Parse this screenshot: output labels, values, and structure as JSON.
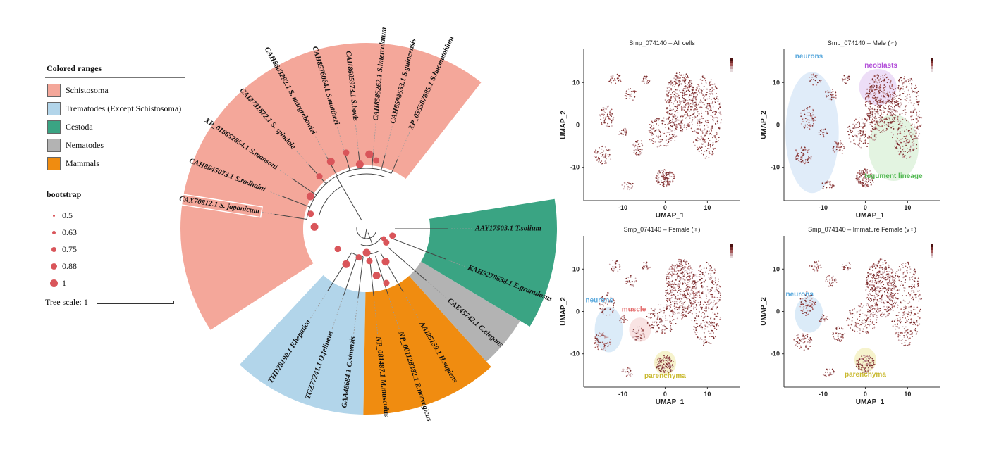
{
  "legend": {
    "colored_ranges_title": "Colored ranges",
    "ranges": [
      {
        "label": "Schistosoma",
        "color": "#f4a79a"
      },
      {
        "label": "Trematodes (Except Schistosoma)",
        "color": "#b2d5ea"
      },
      {
        "label": "Cestoda",
        "color": "#3aa483"
      },
      {
        "label": "Nematodes",
        "color": "#b3b3b3"
      },
      {
        "label": "Mammals",
        "color": "#f08c10"
      }
    ],
    "bootstrap_title": "bootstrap",
    "bootstrap_values": [
      "0.5",
      "0.63",
      "0.75",
      "0.88",
      "1"
    ],
    "tree_scale": "Tree scale: 1"
  },
  "tree": {
    "leaves": [
      "XP_035587885.1 S.haematobium",
      "CAH8598553.1 S.guineensis",
      "CAH8585262.1 S.intercalatum",
      "CAH8605973.1 S.bovis",
      "CAH8576064.1 S.mattheei",
      "CAH8603292.1 S. margrebowiei",
      "CAI2731872.1 S. spindale",
      "XP_018652854.1 S.mansoni",
      "CAH8645073.1 S.rodhaini",
      "CAX70812.1 S. japonicum",
      "THD28190.1 F.hepatica",
      "TGZ77241.1 O.felineus",
      "GAA48684.1 C.sinensis",
      "NP_081487.1 M.musculus",
      "NP_001128382.1 R.norvegicus",
      "AAI25159.1 H.sapiens",
      "CAE45742.1 C.elegans",
      "KAH9278638.1 E.granulosus",
      "AAY17503.1 T.solium"
    ]
  },
  "umap_panels": [
    {
      "title": "Smp_074140 – All cells",
      "xlabel": "UMAP_1",
      "ylabel": "UMAP_2",
      "xticks": [
        "-10",
        "0",
        "10"
      ],
      "yticks": [
        "10",
        "0",
        "-10"
      ],
      "annotations": []
    },
    {
      "title": "Smp_074140 – Male (♂)",
      "xlabel": "UMAP_1",
      "ylabel": "UMAP_2",
      "xticks": [
        "-10",
        "0",
        "10"
      ],
      "yticks": [
        "10",
        "0",
        "-10"
      ],
      "annotations": [
        {
          "label": "neurons",
          "color": "#5aa9dd"
        },
        {
          "label": "neoblasts",
          "color": "#b24fd9"
        },
        {
          "label": "tegument lineage",
          "color": "#4fb84f"
        }
      ]
    },
    {
      "title": "Smp_074140 – Female (♀)",
      "xlabel": "UMAP_1",
      "ylabel": "UMAP_2",
      "xticks": [
        "-10",
        "0",
        "10"
      ],
      "yticks": [
        "10",
        "0",
        "-10"
      ],
      "annotations": [
        {
          "label": "neurons",
          "color": "#5aa9dd"
        },
        {
          "label": "muscle",
          "color": "#e36a6a"
        },
        {
          "label": "parenchyma",
          "color": "#c9b92e"
        }
      ]
    },
    {
      "title": "Smp_074140 – Immature Female (v♀)",
      "xlabel": "UMAP_1",
      "ylabel": "UMAP_2",
      "xticks": [
        "-10",
        "0",
        "10"
      ],
      "yticks": [
        "10",
        "0",
        "-10"
      ],
      "annotations": [
        {
          "label": "neurons",
          "color": "#5aa9dd"
        },
        {
          "label": "parenchyma",
          "color": "#c9b92e"
        }
      ]
    }
  ]
}
